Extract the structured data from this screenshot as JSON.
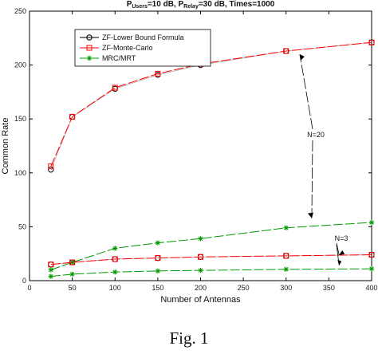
{
  "caption": "Fig. 1",
  "chart_data": {
    "type": "line",
    "title": {
      "parts": [
        {
          "text": "P",
          "sub": false
        },
        {
          "text": "Users",
          "sub": true
        },
        {
          "text": "=10 dB, P",
          "sub": false
        },
        {
          "text": "Relay",
          "sub": true
        },
        {
          "text": "=30 dB, Times=1000",
          "sub": false
        }
      ]
    },
    "xlabel": "Number of Antennas",
    "ylabel": "Common Rate",
    "xlim": [
      0,
      400
    ],
    "ylim": [
      0,
      250
    ],
    "xticks": [
      0,
      50,
      100,
      150,
      200,
      250,
      300,
      350,
      400
    ],
    "yticks": [
      0,
      50,
      100,
      150,
      200,
      250
    ],
    "grid": false,
    "legend_position": "top-left",
    "x": [
      25,
      50,
      100,
      150,
      200,
      300,
      400
    ],
    "series": [
      {
        "name": "ZF-Lower Bound Formula",
        "color": "#000000",
        "marker": "circle",
        "group": "N=20",
        "values": [
          103,
          152,
          178,
          191,
          200,
          213,
          221
        ]
      },
      {
        "name": "ZF-Monte-Carlo",
        "color": "#ff0000",
        "marker": "square",
        "group": "N=20",
        "values": [
          106,
          152,
          179,
          192,
          201,
          213,
          221
        ]
      },
      {
        "name": "MRC/MRT",
        "color": "#009900",
        "marker": "star",
        "group": "N=20",
        "values": [
          10,
          17,
          30,
          35,
          39,
          49,
          54
        ]
      },
      {
        "color": "#000000",
        "marker": "circle",
        "group": "N=3",
        "values": [
          15,
          17,
          20,
          21,
          22,
          23,
          24
        ]
      },
      {
        "color": "#ff0000",
        "marker": "square",
        "group": "N=3",
        "values": [
          15,
          17,
          20,
          21,
          22,
          23,
          24
        ]
      },
      {
        "color": "#009900",
        "marker": "star",
        "group": "N=3",
        "values": [
          4,
          6,
          8,
          9,
          9.5,
          10.5,
          11
        ]
      }
    ],
    "annotations": [
      {
        "text": "N=20"
      },
      {
        "text": "N=3"
      }
    ]
  }
}
